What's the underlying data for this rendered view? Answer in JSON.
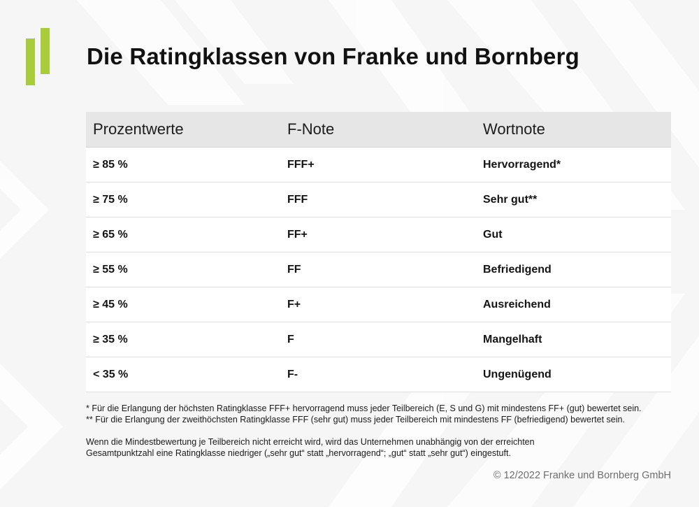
{
  "title": "Die Ratingklassen von Franke und Bornberg",
  "brand": {
    "accent": "#a8cc3a",
    "header_bg": "#e6e6e6",
    "page_bg": "#f6f6f6"
  },
  "logo": {
    "icon": "bars-logo-icon"
  },
  "table": {
    "headers": [
      "Prozentwerte",
      "F-Note",
      "Wortnote"
    ],
    "rows": [
      {
        "percent": "≥ 85 %",
        "fnote": "FFF+",
        "wortnote": "Hervorragend*"
      },
      {
        "percent": "≥ 75 %",
        "fnote": "FFF",
        "wortnote": "Sehr gut**"
      },
      {
        "percent": "≥ 65 %",
        "fnote": "FF+",
        "wortnote": "Gut"
      },
      {
        "percent": "≥ 55 %",
        "fnote": "FF",
        "wortnote": "Befriedigend"
      },
      {
        "percent": "≥ 45 %",
        "fnote": "F+",
        "wortnote": "Ausreichend"
      },
      {
        "percent": "≥ 35 %",
        "fnote": "F",
        "wortnote": "Mangelhaft"
      },
      {
        "percent": "< 35 %",
        "fnote": "F-",
        "wortnote": "Ungenügend"
      }
    ]
  },
  "footnotes": {
    "note1": "*   Für die Erlangung der höchsten Ratingklasse FFF+ hervorragend muss jeder Teilbereich (E, S und G) mit mindestens FF+ (gut) bewertet sein.",
    "note2": "** Für die Erlangung der zweithöchsten Ratingklasse FFF (sehr gut) muss jeder Teilbereich mit mindestens FF (befriedigend) bewertet sein.",
    "para_line1": "Wenn die Mindestbewertung je Teilbereich nicht erreicht wird, wird das Unternehmen unabhängig von der erreichten",
    "para_line2": "Gesamtpunktzahl eine Ratingklasse niedriger („sehr gut“ statt „hervorragend“; „gut“ statt „sehr gut“) eingestuft."
  },
  "copyright": "© 12/2022 Franke und Bornberg GmbH"
}
